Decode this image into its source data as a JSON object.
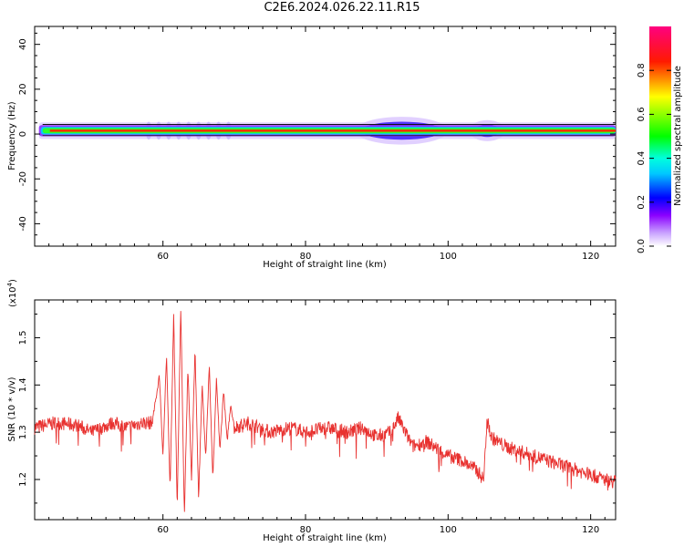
{
  "title": "C2E6.2024.026.22.11.R15",
  "chart_data": [
    {
      "type": "heatmap",
      "xlabel": "Height of straight line (km)",
      "ylabel": "Frequency (Hz)",
      "xlim": [
        42,
        123.5
      ],
      "ylim": [
        -50,
        48
      ],
      "x_ticks": [
        60,
        80,
        100,
        120
      ],
      "y_ticks": [
        -40,
        -20,
        0,
        20,
        40
      ],
      "colorbar": {
        "label": "Normalized spectral amplitude",
        "range": [
          0,
          1
        ],
        "ticks": [
          0.0,
          0.2,
          0.4,
          0.6,
          0.8
        ],
        "colors": [
          "#ffffff",
          "#8b00ff",
          "#0000ff",
          "#00ffff",
          "#00ff00",
          "#ffff00",
          "#ff0000",
          "#ff0080"
        ]
      },
      "band": {
        "center_hz": 1.5,
        "core_halfwidth_hz": 1.2,
        "outer_halfwidth_hz": 2.5,
        "features": [
          {
            "x": [
              58,
              70
            ],
            "note": "ripple"
          },
          {
            "x": [
              87,
              100
            ],
            "halfwidth_hz": 5
          },
          {
            "x": [
              103,
              108
            ],
            "halfwidth_hz": 3.5
          }
        ]
      }
    },
    {
      "type": "line",
      "xlabel": "Height of straight line (km)",
      "ylabel": "SNR (10 * v/v)",
      "scale_label": "(x10",
      "scale_exp": "4",
      "xlim": [
        42,
        123.5
      ],
      "ylim": [
        1.115,
        1.58
      ],
      "x_ticks": [
        60,
        80,
        100,
        120
      ],
      "y_ticks": [
        1.2,
        1.3,
        1.4,
        1.5
      ],
      "color": "#e8312f",
      "series": [
        {
          "x": [
            42,
            45,
            48,
            50,
            53,
            55,
            57,
            58.5,
            59.5,
            60,
            60.5,
            61,
            61.5,
            62,
            62.5,
            63,
            63.5,
            64,
            64.5,
            65,
            65.5,
            66,
            66.5,
            67,
            67.5,
            68,
            68.5,
            69,
            69.5,
            70,
            72,
            75,
            78,
            80,
            83,
            86,
            88,
            90,
            92,
            93,
            95,
            97,
            99,
            100,
            102,
            104,
            105,
            105.5,
            106,
            108,
            110,
            112,
            114,
            116,
            118,
            120,
            122,
            123.5
          ],
          "y": [
            1.31,
            1.32,
            1.315,
            1.3,
            1.32,
            1.31,
            1.32,
            1.32,
            1.42,
            1.25,
            1.46,
            1.18,
            1.55,
            1.14,
            1.57,
            1.12,
            1.44,
            1.2,
            1.48,
            1.16,
            1.4,
            1.25,
            1.44,
            1.2,
            1.41,
            1.26,
            1.39,
            1.28,
            1.36,
            1.31,
            1.32,
            1.3,
            1.31,
            1.3,
            1.31,
            1.3,
            1.31,
            1.29,
            1.3,
            1.33,
            1.27,
            1.28,
            1.26,
            1.25,
            1.24,
            1.22,
            1.2,
            1.34,
            1.29,
            1.27,
            1.26,
            1.25,
            1.24,
            1.23,
            1.22,
            1.21,
            1.2,
            1.195
          ]
        }
      ]
    }
  ]
}
